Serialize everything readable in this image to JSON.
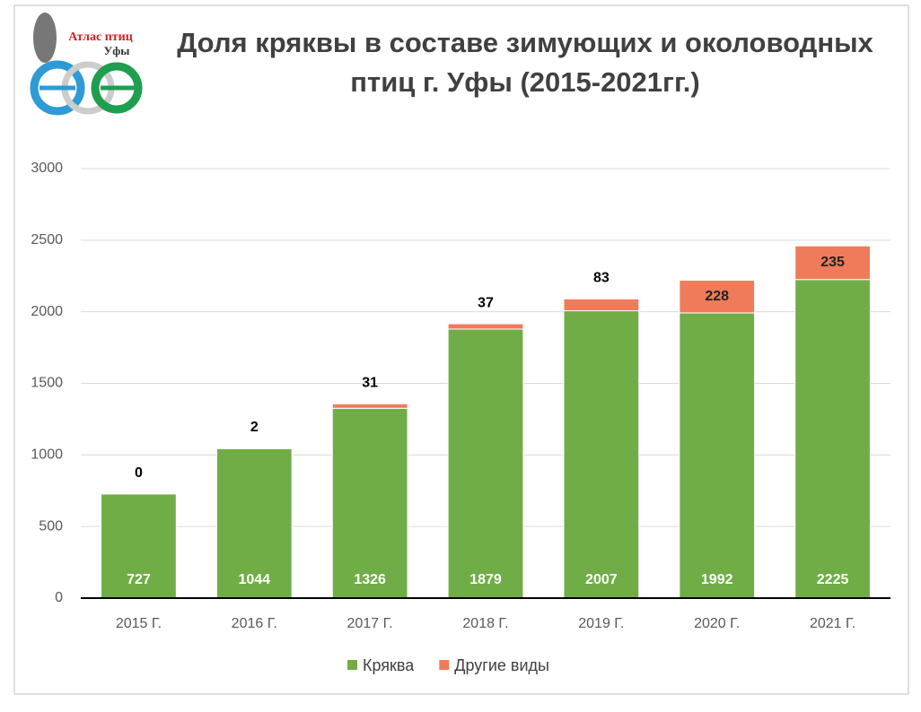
{
  "logo": {
    "title": "Атлас птиц",
    "subtitle": "Уфы"
  },
  "chart_data": {
    "type": "stacked-bar",
    "title": "Доля кряквы в составе зимующих и околоводных птиц г. Уфы (2015-2021гг.)",
    "categories": [
      "2015 Г.",
      "2016 Г.",
      "2017 Г.",
      "2018 Г.",
      "2019 Г.",
      "2020 Г.",
      "2021 Г."
    ],
    "series": [
      {
        "name": "Кряква",
        "color": "#70ad47",
        "values": [
          727,
          1044,
          1326,
          1879,
          2007,
          1992,
          2225
        ]
      },
      {
        "name": "Другие виды",
        "color": "#f07b5a",
        "values": [
          0,
          2,
          31,
          37,
          83,
          228,
          235
        ]
      }
    ],
    "ylim": [
      0,
      3000
    ],
    "yticks": [
      0,
      500,
      1000,
      1500,
      2000,
      2500,
      3000
    ],
    "grid": true,
    "legend": "bottom"
  }
}
